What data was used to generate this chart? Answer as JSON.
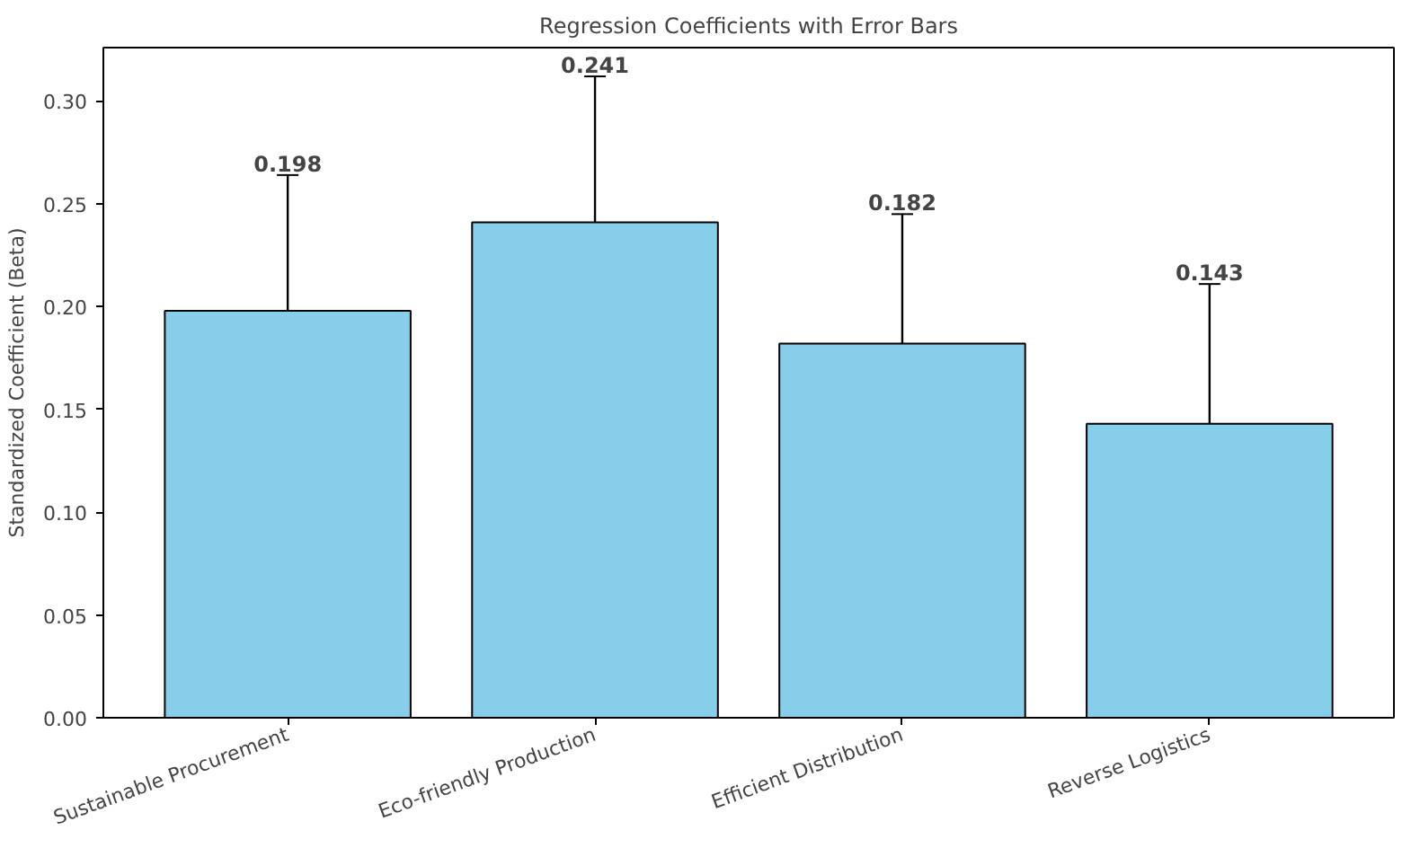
{
  "chart_data": {
    "type": "bar",
    "title": "Regression Coefficients with Error Bars",
    "ylabel": "Standardized Coefficient (Beta)",
    "categories": [
      "Sustainable Procurement",
      "Eco-friendly Production",
      "Efficient Distribution",
      "Reverse Logistics"
    ],
    "values": [
      0.198,
      0.241,
      0.182,
      0.143
    ],
    "errors": [
      0.066,
      0.071,
      0.063,
      0.068
    ],
    "color": "#87ceeb",
    "ylim": [
      0,
      0.326
    ],
    "yticks": [
      {
        "value": 0,
        "label": "0.00"
      },
      {
        "value": 0.05,
        "label": "0.05"
      },
      {
        "value": 0.1,
        "label": "0.10"
      },
      {
        "value": 0.15,
        "label": "0.15"
      },
      {
        "value": 0.2,
        "label": "0.20"
      },
      {
        "value": 0.25,
        "label": "0.25"
      },
      {
        "value": 0.3,
        "label": "0.30"
      }
    ],
    "annotations": [
      {
        "text": "0.198",
        "x": "Sustainable Procurement",
        "y": 0.264
      },
      {
        "text": "0.241",
        "x": "Eco-friendly Production",
        "y": 0.312
      },
      {
        "text": "0.182",
        "x": "Efficient Distribution",
        "y": 0.245
      },
      {
        "text": "0.143",
        "x": "Reverse Logistics",
        "y": 0.211
      }
    ],
    "grid": false
  }
}
